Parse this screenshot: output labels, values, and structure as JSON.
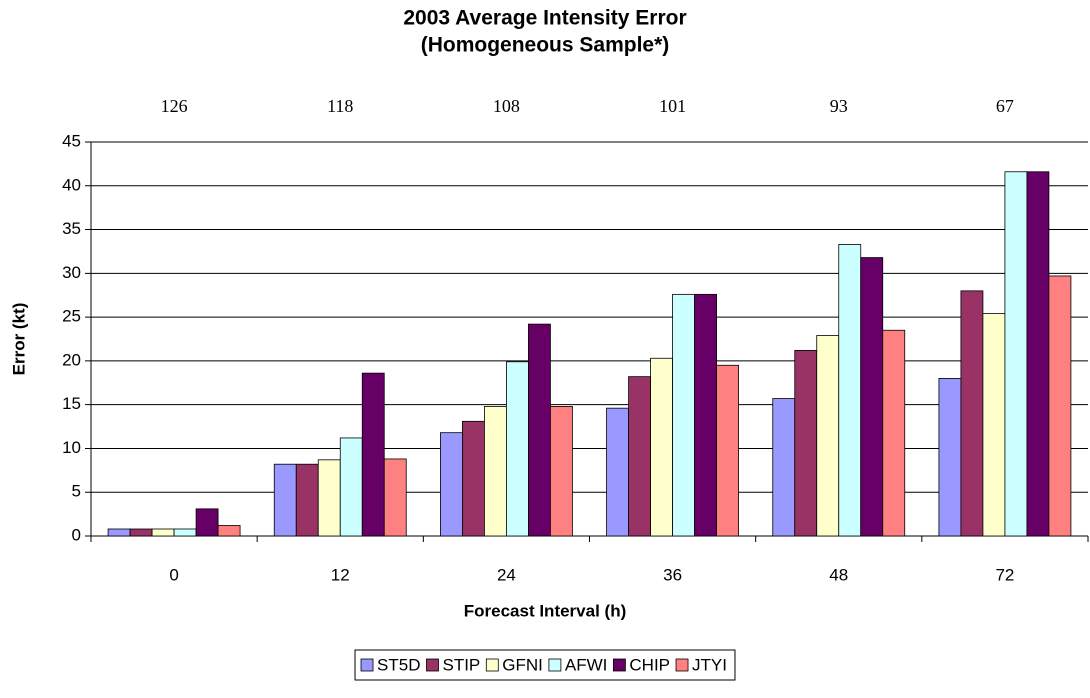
{
  "chart_data": {
    "type": "bar",
    "title": [
      "2003 Average Intensity Error",
      "(Homogeneous Sample*)"
    ],
    "x_label": "Forecast Interval (h)",
    "y_label": "Error (kt)",
    "categories": [
      "0",
      "12",
      "24",
      "36",
      "48",
      "72"
    ],
    "top_labels": [
      126,
      118,
      108,
      101,
      93,
      67
    ],
    "series": [
      {
        "name": "ST5D",
        "color": "#9999ff",
        "values": [
          0.8,
          8.2,
          11.8,
          14.6,
          15.7,
          18.0
        ]
      },
      {
        "name": "STIP",
        "color": "#993366",
        "values": [
          0.8,
          8.2,
          13.1,
          18.2,
          21.2,
          28.0
        ]
      },
      {
        "name": "GFNI",
        "color": "#ffffcc",
        "values": [
          0.8,
          8.7,
          14.8,
          20.3,
          22.9,
          25.4
        ]
      },
      {
        "name": "AFWI",
        "color": "#ccffff",
        "values": [
          0.8,
          11.2,
          19.9,
          27.6,
          33.3,
          41.6
        ]
      },
      {
        "name": "CHIP",
        "color": "#660066",
        "values": [
          3.1,
          18.6,
          24.2,
          27.6,
          31.8,
          41.6
        ]
      },
      {
        "name": "JTYI",
        "color": "#ff8080",
        "values": [
          1.2,
          8.8,
          14.8,
          19.5,
          23.5,
          29.7
        ]
      }
    ],
    "ylim": [
      0,
      45
    ],
    "yticks": [
      0,
      5,
      10,
      15,
      20,
      25,
      30,
      35,
      40,
      45
    ],
    "grid": true,
    "legend": "bottom"
  }
}
